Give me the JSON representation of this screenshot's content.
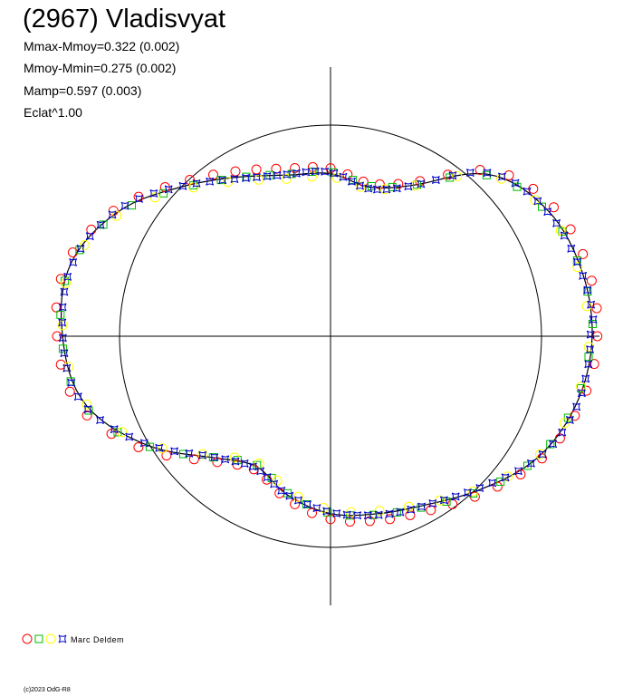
{
  "chart_data": {
    "type": "scatter",
    "title": "(2967) Vladisvyat",
    "stats": [
      "Mmax-Mmoy=0.322 (0.002)",
      "Mmoy-Mmin=0.275 (0.002)",
      "Mamp=0.597 (0.003)",
      "Eclat^1.00"
    ],
    "legend": {
      "observer": "Marc Deldem",
      "placement": "bottom-left"
    },
    "reference_circle_radius": 1.0,
    "axes": {
      "xlim": [
        -1.27,
        1.27
      ],
      "ylim": [
        -1.27,
        1.27
      ],
      "grid": false
    },
    "curve_polar": {
      "theta_deg": [
        0,
        15,
        30,
        45,
        60,
        75,
        90,
        105,
        120,
        135,
        150,
        165,
        180,
        195,
        210,
        225,
        240,
        255,
        270,
        285,
        300,
        315,
        330,
        345,
        360
      ],
      "radius": [
        1.24,
        1.23,
        1.19,
        1.08,
        0.83,
        0.73,
        0.77,
        0.79,
        0.87,
        1.0,
        1.17,
        1.28,
        1.27,
        1.21,
        1.02,
        0.81,
        0.71,
        0.78,
        0.84,
        0.87,
        0.92,
        1.02,
        1.14,
        1.21,
        1.24
      ]
    },
    "series": [
      {
        "symbol": "circle",
        "color": "#ff0000",
        "theta_start": 0,
        "theta_end": 360,
        "count": 60,
        "offset": 0.025
      },
      {
        "symbol": "square",
        "color": "#00bb00",
        "theta_start": 0,
        "theta_end": 360,
        "count": 50,
        "offset": 0.0
      },
      {
        "symbol": "circle",
        "color": "#ffff00",
        "theta_start": 0,
        "theta_end": 360,
        "count": 40,
        "offset": -0.012
      },
      {
        "symbol": "star",
        "color": "#0000cc",
        "theta_start": 0,
        "theta_end": 360,
        "count": 110,
        "offset": 0.0
      }
    ]
  },
  "legend_symbols": [
    {
      "symbol": "circle",
      "color": "#ff0000"
    },
    {
      "symbol": "square",
      "color": "#00bb00"
    },
    {
      "symbol": "circle",
      "color": "#ffff00"
    },
    {
      "symbol": "star",
      "color": "#0000cc"
    }
  ],
  "copyright": "(c)2023 OdG-R8"
}
